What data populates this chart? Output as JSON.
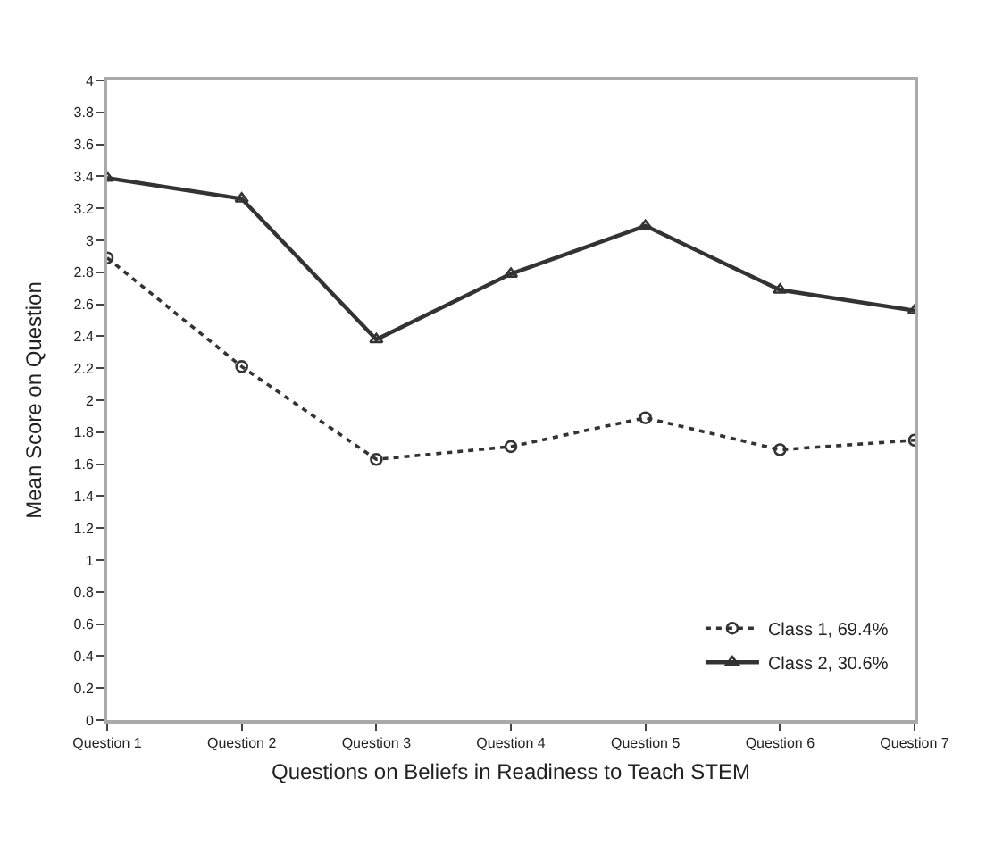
{
  "chart_data": {
    "type": "line",
    "xlabel": "Questions on Beliefs in Readiness to Teach STEM",
    "ylabel": "Mean Score on Question",
    "categories": [
      "Question 1",
      "Question 2",
      "Question 3",
      "Question 4",
      "Question 5",
      "Question 6",
      "Question 7"
    ],
    "series": [
      {
        "name": "Class 1, 69.4%",
        "color": "#333333",
        "line_style": "dotted",
        "marker": "circle",
        "values": [
          2.89,
          2.21,
          1.63,
          1.71,
          1.89,
          1.69,
          1.75
        ]
      },
      {
        "name": "Class 2, 30.6%",
        "color": "#333333",
        "line_style": "solid",
        "marker": "triangle",
        "values": [
          3.39,
          3.26,
          2.38,
          2.79,
          3.09,
          2.69,
          2.56
        ]
      }
    ],
    "ylim": [
      0,
      4
    ],
    "yticks": [
      0,
      0.2,
      0.4,
      0.6,
      0.8,
      1,
      1.2,
      1.4,
      1.6,
      1.8,
      2,
      2.2,
      2.4,
      2.6,
      2.8,
      3,
      3.2,
      3.4,
      3.6,
      3.8,
      4
    ],
    "legend": "bottom right"
  }
}
